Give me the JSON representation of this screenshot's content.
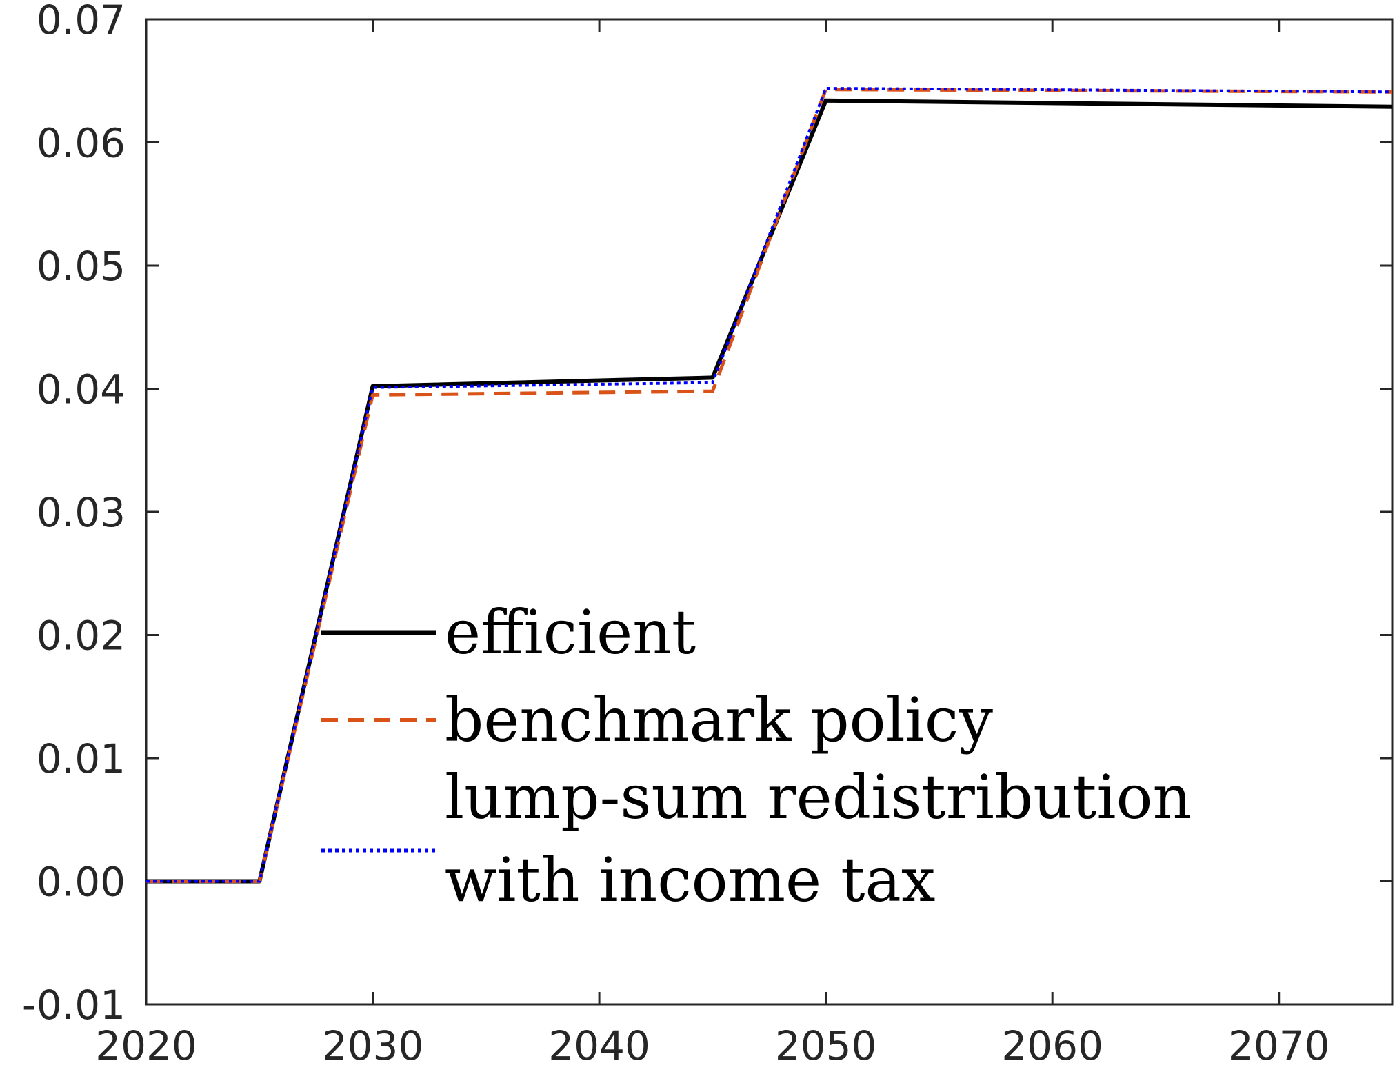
{
  "chart_data": {
    "type": "line",
    "title": "",
    "xlabel": "",
    "ylabel": "",
    "xlim": [
      2020,
      2075
    ],
    "ylim": [
      -0.01,
      0.07
    ],
    "xticks": [
      "2020",
      "2030",
      "2040",
      "2050",
      "2060",
      "2070"
    ],
    "yticks": [
      "-0.01",
      "0.00",
      "0.01",
      "0.02",
      "0.03",
      "0.04",
      "0.05",
      "0.06",
      "0.07"
    ],
    "grid": false,
    "legend_position": "lower-center",
    "series": [
      {
        "name": "efficient",
        "color": "#000000",
        "style": "solid",
        "x": [
          2020,
          2025,
          2030,
          2045,
          2050,
          2075
        ],
        "y": [
          0.0,
          0.0,
          0.0402,
          0.0409,
          0.0634,
          0.0629
        ]
      },
      {
        "name": "benchmark policy",
        "color": "#D95319",
        "style": "dashed",
        "x": [
          2020,
          2025,
          2030,
          2045,
          2050,
          2075
        ],
        "y": [
          0.0,
          0.0,
          0.0395,
          0.0398,
          0.0643,
          0.0641
        ]
      },
      {
        "name_lines": [
          "lump-sum redistribution",
          "with income tax"
        ],
        "color": "#0000FF",
        "style": "dotted",
        "x": [
          2020,
          2025,
          2030,
          2045,
          2050,
          2075
        ],
        "y": [
          0.0,
          0.0,
          0.0401,
          0.0405,
          0.0644,
          0.0641
        ]
      }
    ]
  }
}
